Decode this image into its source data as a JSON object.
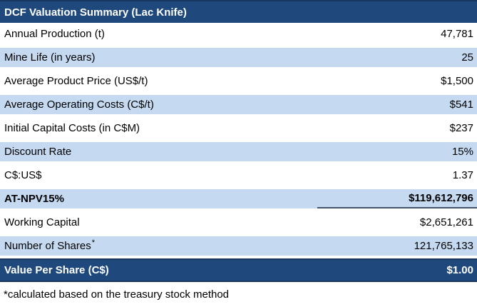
{
  "header": {
    "title": "DCF Valuation Summary (Lac Knife)"
  },
  "colors": {
    "header_navy": "#1F497D",
    "border_dark_navy": "#17375E",
    "row_light_blue": "#C5D9F1",
    "npv_underline": "#44546A",
    "text_black": "#000000",
    "text_white": "#ffffff"
  },
  "rows": [
    {
      "label": "Annual Production (t)",
      "value": "47,781"
    },
    {
      "label": "Mine Life (in years)",
      "value": "25"
    },
    {
      "label": "Average Product Price (US$/t)",
      "value": "$1,500"
    },
    {
      "label": "Average Operating Costs (C$/t)",
      "value": "$541"
    },
    {
      "label": "Initial Capital Costs (in C$M)",
      "value": "$237"
    },
    {
      "label": "Discount Rate",
      "value": "15%"
    },
    {
      "label": "C$:US$",
      "value": "1.37"
    },
    {
      "label": "AT-NPV15%",
      "value": "$119,612,796"
    },
    {
      "label": "Working Capital",
      "value": "$2,651,261"
    },
    {
      "label": "Number of Shares",
      "sup": "*",
      "value": "121,765,133"
    }
  ],
  "footer_row": {
    "label": "Value Per Share (C$)",
    "value": "$1.00"
  },
  "footnote": "*calculated based on the treasury stock method"
}
